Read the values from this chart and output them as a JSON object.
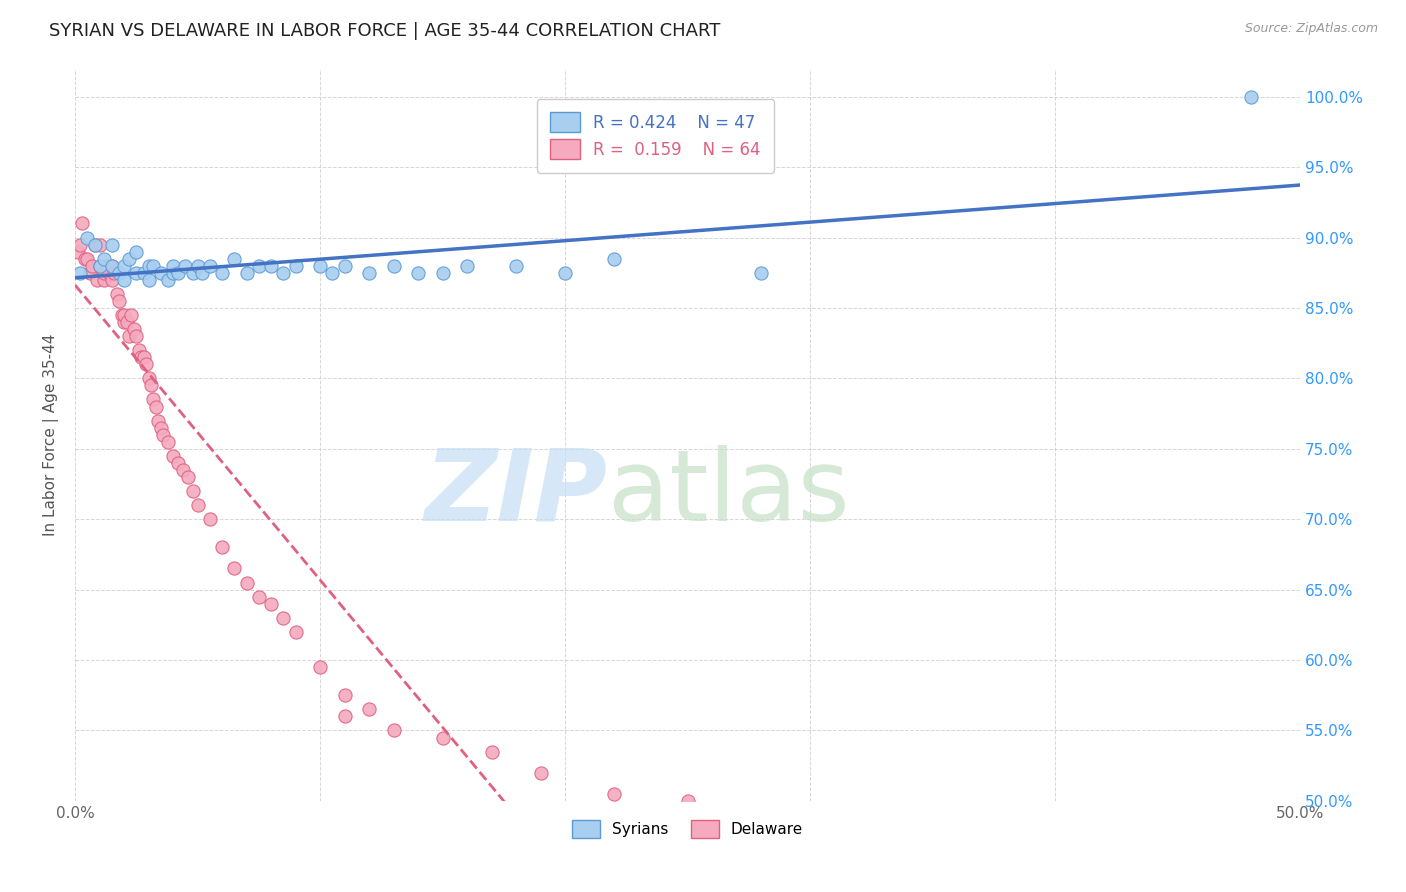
{
  "title": "SYRIAN VS DELAWARE IN LABOR FORCE | AGE 35-44 CORRELATION CHART",
  "source_text": "Source: ZipAtlas.com",
  "ylabel": "In Labor Force | Age 35-44",
  "xlim": [
    0.0,
    0.5
  ],
  "ylim": [
    0.5,
    1.02
  ],
  "syrians_R": 0.424,
  "syrians_N": 47,
  "delaware_R": 0.159,
  "delaware_N": 64,
  "syrians_color": "#A8CEF0",
  "delaware_color": "#F5AABF",
  "syrians_edge_color": "#5B9BD5",
  "delaware_edge_color": "#E06080",
  "syrians_line_color": "#4472C4",
  "delaware_line_color": "#E06080",
  "legend_label_syrians": "Syrians",
  "legend_label_delaware": "Delaware",
  "background_color": "#ffffff",
  "grid_color": "#cccccc",
  "syrians_x": [
    0.002,
    0.005,
    0.008,
    0.01,
    0.012,
    0.015,
    0.015,
    0.018,
    0.02,
    0.02,
    0.022,
    0.025,
    0.025,
    0.028,
    0.03,
    0.03,
    0.032,
    0.035,
    0.038,
    0.04,
    0.04,
    0.042,
    0.045,
    0.048,
    0.05,
    0.052,
    0.055,
    0.06,
    0.065,
    0.07,
    0.075,
    0.08,
    0.085,
    0.09,
    0.1,
    0.105,
    0.11,
    0.12,
    0.13,
    0.14,
    0.15,
    0.16,
    0.18,
    0.2,
    0.22,
    0.28,
    0.48
  ],
  "syrians_y": [
    0.875,
    0.9,
    0.895,
    0.88,
    0.885,
    0.88,
    0.895,
    0.875,
    0.87,
    0.88,
    0.885,
    0.875,
    0.89,
    0.875,
    0.88,
    0.87,
    0.88,
    0.875,
    0.87,
    0.875,
    0.88,
    0.875,
    0.88,
    0.875,
    0.88,
    0.875,
    0.88,
    0.875,
    0.885,
    0.875,
    0.88,
    0.88,
    0.875,
    0.88,
    0.88,
    0.875,
    0.88,
    0.875,
    0.88,
    0.875,
    0.875,
    0.88,
    0.88,
    0.875,
    0.885,
    0.875,
    1.0
  ],
  "delaware_x": [
    0.001,
    0.002,
    0.003,
    0.004,
    0.005,
    0.006,
    0.007,
    0.008,
    0.009,
    0.01,
    0.01,
    0.012,
    0.012,
    0.013,
    0.014,
    0.015,
    0.015,
    0.016,
    0.017,
    0.018,
    0.019,
    0.02,
    0.02,
    0.021,
    0.022,
    0.023,
    0.024,
    0.025,
    0.026,
    0.027,
    0.028,
    0.029,
    0.03,
    0.031,
    0.032,
    0.033,
    0.034,
    0.035,
    0.036,
    0.038,
    0.04,
    0.042,
    0.044,
    0.046,
    0.048,
    0.05,
    0.055,
    0.06,
    0.065,
    0.07,
    0.075,
    0.08,
    0.085,
    0.09,
    0.1,
    0.11,
    0.12,
    0.13,
    0.15,
    0.17,
    0.19,
    0.22,
    0.25,
    0.11
  ],
  "delaware_y": [
    0.89,
    0.895,
    0.91,
    0.885,
    0.885,
    0.875,
    0.88,
    0.895,
    0.87,
    0.895,
    0.88,
    0.87,
    0.875,
    0.88,
    0.875,
    0.87,
    0.88,
    0.875,
    0.86,
    0.855,
    0.845,
    0.84,
    0.845,
    0.84,
    0.83,
    0.845,
    0.835,
    0.83,
    0.82,
    0.815,
    0.815,
    0.81,
    0.8,
    0.795,
    0.785,
    0.78,
    0.77,
    0.765,
    0.76,
    0.755,
    0.745,
    0.74,
    0.735,
    0.73,
    0.72,
    0.71,
    0.7,
    0.68,
    0.665,
    0.655,
    0.645,
    0.64,
    0.63,
    0.62,
    0.595,
    0.575,
    0.565,
    0.55,
    0.545,
    0.535,
    0.52,
    0.505,
    0.5,
    0.56
  ]
}
